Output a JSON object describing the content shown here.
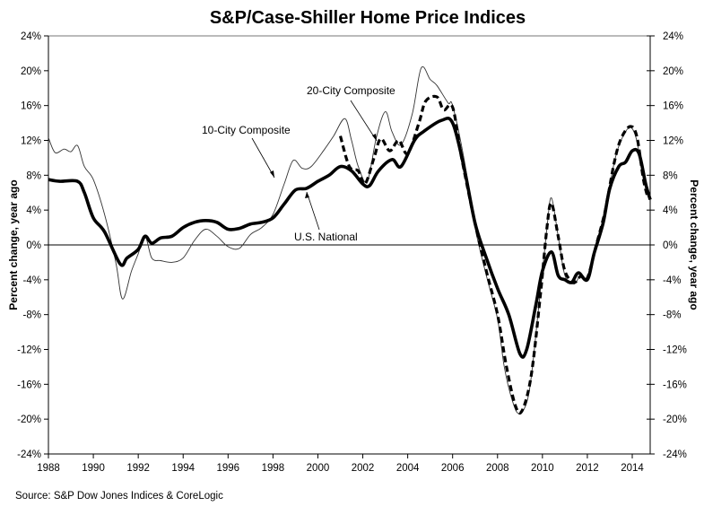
{
  "chart_data": {
    "type": "line",
    "title": "S&P/Case-Shiller Home Price Indices",
    "xlabel": "",
    "ylabel": "Percent change, year ago",
    "ylabel_right": "Percent change, year ago",
    "source": "Source: S&P Dow Jones Indices & CoreLogic",
    "xlim": [
      1988,
      2014.9
    ],
    "ylim": [
      -24,
      24
    ],
    "x_ticks": [
      1988,
      1990,
      1992,
      1994,
      1996,
      1998,
      2000,
      2002,
      2004,
      2006,
      2008,
      2010,
      2012,
      2014
    ],
    "x_tick_labels": [
      "1988",
      "1990",
      "1992",
      "1994",
      "1996",
      "1998",
      "2000",
      "2002",
      "2004",
      "2006",
      "2008",
      "2010",
      "2012",
      "2014"
    ],
    "y_ticks": [
      24,
      20,
      16,
      12,
      8,
      4,
      0,
      -4,
      -8,
      -12,
      -16,
      -20,
      -24
    ],
    "y_tick_labels": [
      "24%",
      "20%",
      "16%",
      "12%",
      "8%",
      "4%",
      "0%",
      "-4%",
      "-8%",
      "-12%",
      "-16%",
      "-20%",
      "-24%"
    ],
    "grid": false,
    "zero_line": true,
    "legend": "annotations",
    "series": [
      {
        "name": "10-City Composite",
        "style": "thin",
        "points": [
          [
            1988,
            12.3
          ],
          [
            1988.3,
            10.6
          ],
          [
            1988.7,
            11.0
          ],
          [
            1989,
            10.7
          ],
          [
            1989.3,
            11.4
          ],
          [
            1989.6,
            9.0
          ],
          [
            1990,
            7.5
          ],
          [
            1990.5,
            3.5
          ],
          [
            1991,
            -2.0
          ],
          [
            1991.3,
            -6.2
          ],
          [
            1991.7,
            -3.0
          ],
          [
            1992,
            -1.0
          ],
          [
            1992.3,
            1.0
          ],
          [
            1992.6,
            -1.5
          ],
          [
            1993,
            -1.8
          ],
          [
            1993.5,
            -2.0
          ],
          [
            1994,
            -1.5
          ],
          [
            1994.5,
            0.5
          ],
          [
            1995,
            1.8
          ],
          [
            1995.5,
            1.0
          ],
          [
            1996,
            -0.2
          ],
          [
            1996.5,
            -0.4
          ],
          [
            1997,
            1.2
          ],
          [
            1997.5,
            2.0
          ],
          [
            1998,
            3.5
          ],
          [
            1998.5,
            7.0
          ],
          [
            1998.9,
            9.7
          ],
          [
            1999.3,
            8.8
          ],
          [
            1999.7,
            9.0
          ],
          [
            2000.3,
            11.0
          ],
          [
            2000.7,
            12.5
          ],
          [
            2001.2,
            14.5
          ],
          [
            2001.5,
            12.0
          ],
          [
            2001.8,
            9.0
          ],
          [
            2002.2,
            7.3
          ],
          [
            2002.6,
            12.3
          ],
          [
            2003,
            15.3
          ],
          [
            2003.3,
            13.0
          ],
          [
            2003.7,
            11.5
          ],
          [
            2004.2,
            15.0
          ],
          [
            2004.6,
            20.3
          ],
          [
            2005,
            19.0
          ],
          [
            2005.3,
            18.3
          ],
          [
            2005.8,
            16.3
          ],
          [
            2006,
            16.0
          ],
          [
            2006.5,
            10.0
          ],
          [
            2007,
            2.0
          ],
          [
            2007.5,
            -3.5
          ],
          [
            2008,
            -8.5
          ],
          [
            2008.3,
            -14.0
          ],
          [
            2008.7,
            -18.2
          ],
          [
            2009,
            -19.3
          ],
          [
            2009.4,
            -17.0
          ],
          [
            2009.8,
            -8.0
          ],
          [
            2010.2,
            2.0
          ],
          [
            2010.4,
            5.4
          ],
          [
            2010.7,
            1.0
          ],
          [
            2011,
            -3.5
          ],
          [
            2011.4,
            -4.5
          ],
          [
            2011.7,
            -3.5
          ],
          [
            2012,
            -4.0
          ],
          [
            2012.4,
            0.0
          ],
          [
            2012.8,
            4.0
          ],
          [
            2013.2,
            9.5
          ],
          [
            2013.5,
            12.0
          ],
          [
            2013.9,
            13.5
          ],
          [
            2014.2,
            12.0
          ],
          [
            2014.5,
            7.5
          ],
          [
            2014.7,
            6.0
          ]
        ]
      },
      {
        "name": "20-City Composite",
        "style": "dashed",
        "points": [
          [
            2001,
            12.5
          ],
          [
            2001.4,
            9.0
          ],
          [
            2001.8,
            8.5
          ],
          [
            2002.1,
            7.0
          ],
          [
            2002.5,
            10.0
          ],
          [
            2002.8,
            12.2
          ],
          [
            2003.2,
            10.8
          ],
          [
            2003.6,
            12.0
          ],
          [
            2004,
            10.5
          ],
          [
            2004.5,
            14.0
          ],
          [
            2004.8,
            16.5
          ],
          [
            2005.3,
            17.0
          ],
          [
            2005.6,
            15.5
          ],
          [
            2006,
            15.8
          ],
          [
            2006.4,
            10.0
          ],
          [
            2007,
            2.5
          ],
          [
            2007.5,
            -3.0
          ],
          [
            2008,
            -8.0
          ],
          [
            2008.4,
            -14.0
          ],
          [
            2008.8,
            -18.5
          ],
          [
            2009.1,
            -19.0
          ],
          [
            2009.5,
            -15.0
          ],
          [
            2009.9,
            -6.0
          ],
          [
            2010.2,
            2.0
          ],
          [
            2010.4,
            4.8
          ],
          [
            2010.7,
            1.0
          ],
          [
            2011,
            -3.0
          ],
          [
            2011.4,
            -4.3
          ],
          [
            2011.7,
            -3.6
          ],
          [
            2012,
            -3.8
          ],
          [
            2012.4,
            0.0
          ],
          [
            2012.8,
            4.0
          ],
          [
            2013.2,
            9.5
          ],
          [
            2013.5,
            12.2
          ],
          [
            2013.9,
            13.6
          ],
          [
            2014.2,
            12.5
          ],
          [
            2014.5,
            7.5
          ],
          [
            2014.7,
            5.4
          ]
        ]
      },
      {
        "name": "U.S. National",
        "style": "thick",
        "points": [
          [
            1988,
            7.5
          ],
          [
            1988.5,
            7.3
          ],
          [
            1989.3,
            7.3
          ],
          [
            1989.6,
            6.0
          ],
          [
            1990,
            3.1
          ],
          [
            1990.5,
            1.5
          ],
          [
            1991.2,
            -2.2
          ],
          [
            1991.5,
            -1.5
          ],
          [
            1992,
            -0.5
          ],
          [
            1992.3,
            1.0
          ],
          [
            1992.6,
            0.2
          ],
          [
            1993,
            0.8
          ],
          [
            1993.5,
            1.0
          ],
          [
            1994,
            2.0
          ],
          [
            1994.5,
            2.6
          ],
          [
            1995,
            2.8
          ],
          [
            1995.5,
            2.6
          ],
          [
            1996,
            1.8
          ],
          [
            1996.5,
            1.9
          ],
          [
            1997,
            2.4
          ],
          [
            1997.5,
            2.6
          ],
          [
            1998,
            3.1
          ],
          [
            1998.5,
            4.7
          ],
          [
            1999,
            6.3
          ],
          [
            1999.5,
            6.5
          ],
          [
            2000,
            7.3
          ],
          [
            2000.5,
            8.0
          ],
          [
            2001,
            9.0
          ],
          [
            2001.5,
            8.5
          ],
          [
            2002,
            7.0
          ],
          [
            2002.3,
            6.8
          ],
          [
            2002.7,
            8.5
          ],
          [
            2003.3,
            9.8
          ],
          [
            2003.7,
            9.0
          ],
          [
            2004.3,
            12.0
          ],
          [
            2004.7,
            13.0
          ],
          [
            2005.5,
            14.3
          ],
          [
            2006,
            14.0
          ],
          [
            2006.5,
            9.0
          ],
          [
            2007,
            2.5
          ],
          [
            2007.5,
            -1.5
          ],
          [
            2008,
            -5.0
          ],
          [
            2008.5,
            -8.0
          ],
          [
            2009,
            -12.5
          ],
          [
            2009.3,
            -12.0
          ],
          [
            2009.7,
            -7.0
          ],
          [
            2010,
            -3.0
          ],
          [
            2010.4,
            -0.8
          ],
          [
            2010.7,
            -3.5
          ],
          [
            2011,
            -4.0
          ],
          [
            2011.3,
            -4.3
          ],
          [
            2011.6,
            -3.2
          ],
          [
            2012,
            -4.0
          ],
          [
            2012.3,
            -1.0
          ],
          [
            2012.7,
            2.5
          ],
          [
            2013,
            6.5
          ],
          [
            2013.4,
            9.0
          ],
          [
            2013.7,
            9.5
          ],
          [
            2014,
            10.8
          ],
          [
            2014.3,
            10.5
          ],
          [
            2014.6,
            7.0
          ],
          [
            2014.8,
            5.2
          ]
        ]
      }
    ],
    "annotations": [
      {
        "text": "10-City Composite",
        "series": "10-City Composite",
        "arrow_to": [
          1998,
          4.5
        ]
      },
      {
        "text": "20-City Composite",
        "series": "20-City Composite",
        "arrow_to": [
          2002.6,
          11.9
        ]
      },
      {
        "text": "U.S. National",
        "series": "U.S. National",
        "arrow_to": [
          1999.5,
          6.2
        ]
      }
    ]
  }
}
